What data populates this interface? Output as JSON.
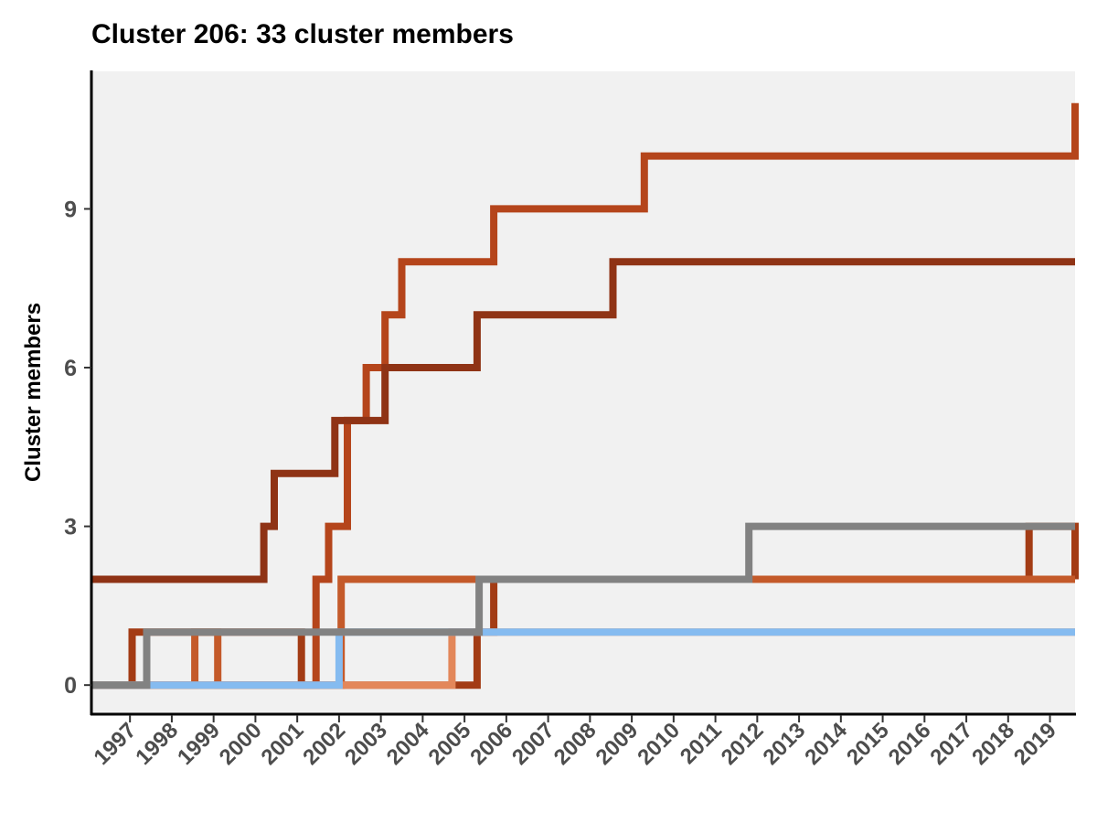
{
  "chart_data": {
    "type": "line",
    "step": true,
    "title": "Cluster 206: 33 cluster members",
    "xlabel": "",
    "ylabel": "Cluster members",
    "xlim": [
      1996.1,
      2019.6
    ],
    "ylim": [
      -0.55,
      11.6
    ],
    "yticks": [
      0,
      3,
      6,
      9
    ],
    "xticks": [
      "1997",
      "1998",
      "1999",
      "2000",
      "2001",
      "2002",
      "2003",
      "2004",
      "2005",
      "2006",
      "2007",
      "2008",
      "2009",
      "2010",
      "2011",
      "2012",
      "2013",
      "2014",
      "2015",
      "2016",
      "2017",
      "2018",
      "2019"
    ],
    "grid": false,
    "legend": "none",
    "background": "#f1f1f1",
    "series": [
      {
        "color": "#b5451b",
        "x": [
          1996.1,
          2001.45,
          2001.75,
          2002.2,
          2002.65,
          2003.1,
          2003.5,
          2005.7,
          2009.3,
          2019.6
        ],
        "y": [
          0,
          2,
          3,
          5,
          6,
          7,
          8,
          9,
          10,
          11
        ]
      },
      {
        "color": "#8f3315",
        "x": [
          1996.1,
          2000.2,
          2000.45,
          2001.5,
          2001.9,
          2003.1,
          2004.1,
          2005.3,
          2008.55,
          2019.6
        ],
        "y": [
          2,
          3,
          4,
          4,
          5,
          6,
          6,
          7,
          8,
          8
        ]
      },
      {
        "color": "#a33c15",
        "x": [
          1996.1,
          1997.05,
          1998.0,
          2001.1,
          2005.3,
          2005.7,
          2011.8,
          2018.5,
          2019.6
        ],
        "y": [
          0,
          1,
          1,
          0,
          1,
          2,
          2,
          3,
          2
        ]
      },
      {
        "color": "#c45a2a",
        "x": [
          1996.1,
          1998.55,
          1999.1,
          2002.05,
          2005.25,
          2019.6
        ],
        "y": [
          0,
          1,
          0,
          2,
          2,
          2
        ]
      },
      {
        "color": "#e3875a",
        "x": [
          1996.1,
          2004.7,
          2008.45,
          2019.6
        ],
        "y": [
          0,
          1,
          1,
          1
        ]
      },
      {
        "color": "#85bbf0",
        "x": [
          1996.1,
          2002.0,
          2005.95,
          2019.6
        ],
        "y": [
          0,
          1,
          1,
          1
        ]
      },
      {
        "color": "#828282",
        "x": [
          1996.1,
          1997.4,
          2005.35,
          2011.8,
          2019.6
        ],
        "y": [
          0,
          1,
          2,
          3,
          3
        ]
      }
    ]
  }
}
